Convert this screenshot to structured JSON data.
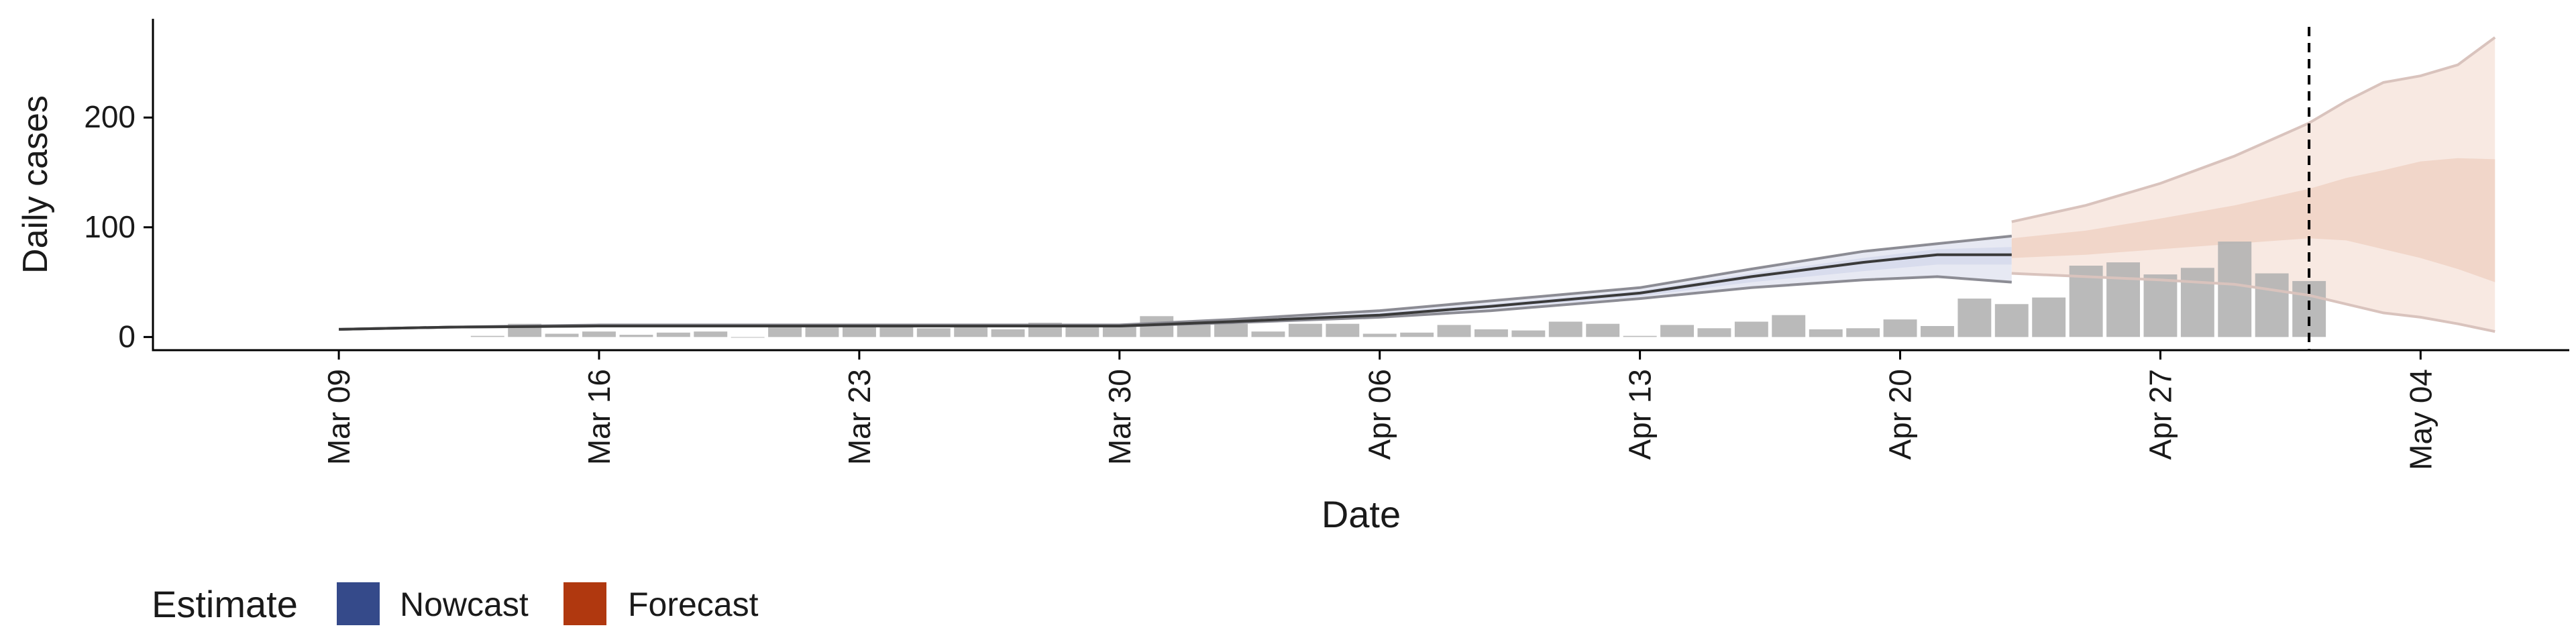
{
  "chart_data": {
    "type": "bar",
    "title": "",
    "xlabel": "Date",
    "ylabel": "Daily cases",
    "x_ticks": [
      "Mar 09",
      "Mar 16",
      "Mar 23",
      "Mar 30",
      "Apr 06",
      "Apr 13",
      "Apr 20",
      "Apr 27",
      "May 04"
    ],
    "y_ticks": [
      0,
      100,
      200
    ],
    "ylim": [
      -12,
      290
    ],
    "xlim": [
      "2020-03-04",
      "2020-05-08"
    ],
    "grid": false,
    "legend": {
      "title": "Estimate",
      "placement": "bottom-left",
      "items": [
        {
          "label": "Nowcast",
          "color": "#354a8a"
        },
        {
          "label": "Forecast",
          "color": "#b0380f"
        }
      ]
    },
    "reference_line": {
      "date": "2020-05-01",
      "style": "dashed"
    },
    "bars": {
      "color": "#b3b3b3",
      "dates": [
        "2020-03-13",
        "2020-03-14",
        "2020-03-15",
        "2020-03-16",
        "2020-03-17",
        "2020-03-18",
        "2020-03-19",
        "2020-03-20",
        "2020-03-21",
        "2020-03-22",
        "2020-03-23",
        "2020-03-24",
        "2020-03-25",
        "2020-03-26",
        "2020-03-27",
        "2020-03-28",
        "2020-03-29",
        "2020-03-30",
        "2020-03-31",
        "2020-04-01",
        "2020-04-02",
        "2020-04-03",
        "2020-04-04",
        "2020-04-05",
        "2020-04-06",
        "2020-04-07",
        "2020-04-08",
        "2020-04-09",
        "2020-04-10",
        "2020-04-11",
        "2020-04-12",
        "2020-04-13",
        "2020-04-14",
        "2020-04-15",
        "2020-04-16",
        "2020-04-17",
        "2020-04-18",
        "2020-04-19",
        "2020-04-20",
        "2020-04-21",
        "2020-04-22",
        "2020-04-23",
        "2020-04-24",
        "2020-04-25",
        "2020-04-26",
        "2020-04-27",
        "2020-04-28",
        "2020-04-29",
        "2020-04-30",
        "2020-05-01"
      ],
      "values": [
        1,
        12,
        3,
        5,
        2,
        4,
        5,
        0,
        10,
        10,
        10,
        10,
        8,
        12,
        7,
        13,
        10,
        11,
        19,
        13,
        12,
        5,
        12,
        12,
        3,
        4,
        11,
        7,
        6,
        14,
        12,
        1,
        11,
        8,
        14,
        20,
        7,
        8,
        16,
        10,
        35,
        30,
        36,
        65,
        68,
        57,
        63,
        87,
        58,
        51
      ]
    },
    "series": [
      {
        "name": "Nowcast",
        "dates": [
          "2020-03-09",
          "2020-03-12",
          "2020-03-16",
          "2020-03-19",
          "2020-03-23",
          "2020-03-26",
          "2020-03-30",
          "2020-04-02",
          "2020-04-06",
          "2020-04-09",
          "2020-04-13",
          "2020-04-16",
          "2020-04-19",
          "2020-04-21",
          "2020-04-23"
        ],
        "median": [
          7,
          9,
          10,
          10,
          10,
          10,
          10,
          14,
          20,
          28,
          40,
          55,
          68,
          75,
          75
        ],
        "lower_outer": [
          7,
          9,
          10,
          10,
          10,
          10,
          10,
          13,
          18,
          24,
          35,
          45,
          52,
          55,
          50
        ],
        "upper_outer": [
          7,
          9,
          11,
          11,
          11,
          11,
          11,
          16,
          24,
          33,
          45,
          62,
          78,
          85,
          92
        ],
        "lower_inner": [
          7,
          9,
          10,
          10,
          10,
          10,
          10,
          14,
          19,
          26,
          37,
          50,
          60,
          66,
          66
        ],
        "upper_inner": [
          7,
          9,
          10,
          10,
          10,
          10,
          10,
          15,
          22,
          30,
          42,
          58,
          72,
          80,
          82
        ]
      },
      {
        "name": "Forecast",
        "dates": [
          "2020-04-23",
          "2020-04-25",
          "2020-04-27",
          "2020-04-29",
          "2020-05-01",
          "2020-05-02",
          "2020-05-03",
          "2020-05-04",
          "2020-05-05",
          "2020-05-06"
        ],
        "lower_outer": [
          58,
          55,
          52,
          48,
          38,
          30,
          22,
          18,
          12,
          5
        ],
        "upper_outer": [
          105,
          120,
          140,
          165,
          195,
          215,
          232,
          238,
          248,
          273
        ],
        "lower_inner": [
          72,
          75,
          80,
          85,
          90,
          88,
          80,
          72,
          62,
          50
        ],
        "upper_inner": [
          90,
          97,
          108,
          120,
          135,
          145,
          152,
          160,
          163,
          162
        ]
      }
    ]
  }
}
